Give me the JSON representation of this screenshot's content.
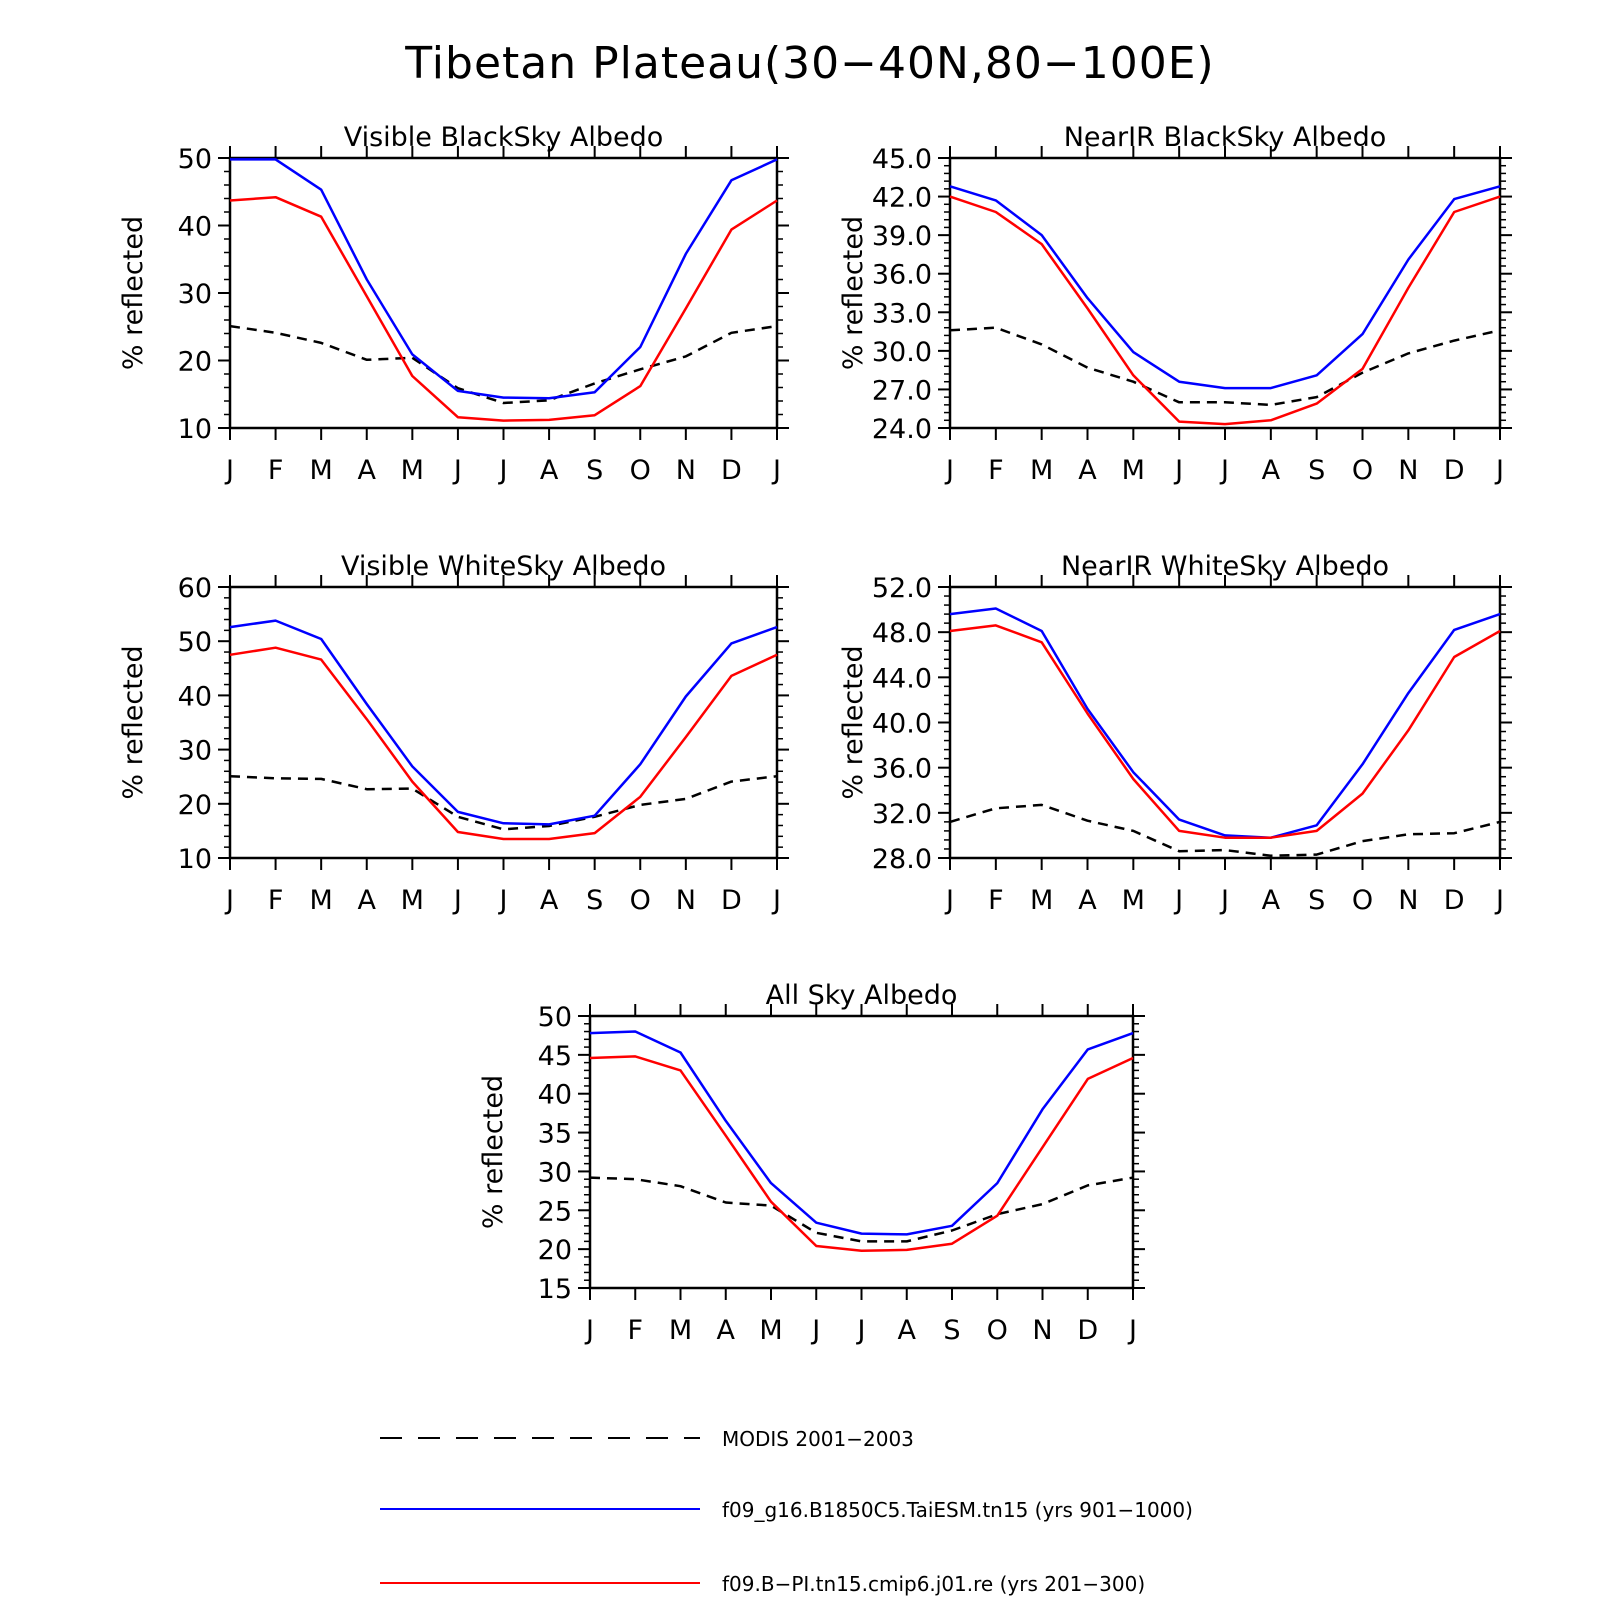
{
  "figure": {
    "title": "Tibetan Plateau(30−40N,80−100E)",
    "legend": [
      {
        "label": "MODIS 2001−2003",
        "color": "#000000",
        "style": "dashed"
      },
      {
        "label": "f09_g16.B1850C5.TaiESM.tn15 (yrs 901−1000)",
        "color": "#0000ff",
        "style": "solid"
      },
      {
        "label": "f09.B−PI.tn15.cmip6.j01.re (yrs 201−300)",
        "color": "#ff0000",
        "style": "solid"
      }
    ]
  },
  "chart_data": [
    {
      "type": "line",
      "title": "Visible BlackSky Albedo",
      "ylabel": "% reflected",
      "categories": [
        "J",
        "F",
        "M",
        "A",
        "M",
        "J",
        "J",
        "A",
        "S",
        "O",
        "N",
        "D",
        "J"
      ],
      "ylim": [
        10,
        50
      ],
      "yticks": [
        "10",
        "20",
        "30",
        "40",
        "50"
      ],
      "yminor": 2,
      "series": [
        {
          "name": "MODIS 2001−2003",
          "color": "#000000",
          "dashed": true,
          "values": [
            25.1,
            24.1,
            22.6,
            20.1,
            20.4,
            15.9,
            13.7,
            14.1,
            16.6,
            18.7,
            20.6,
            24.1,
            25.1
          ]
        },
        {
          "name": "f09_g16.B1850C5.TaiESM.tn15 (yrs 901−1000)",
          "color": "#0000ff",
          "dashed": false,
          "values": [
            49.8,
            49.8,
            45.3,
            32.0,
            20.9,
            15.5,
            14.5,
            14.4,
            15.3,
            22.0,
            35.8,
            46.7,
            49.8
          ]
        },
        {
          "name": "f09.B−PI.tn15.cmip6.j01.re (yrs 201−300)",
          "color": "#ff0000",
          "dashed": false,
          "values": [
            43.7,
            44.2,
            41.3,
            29.5,
            17.7,
            11.6,
            11.1,
            11.2,
            11.9,
            16.2,
            27.7,
            39.4,
            43.7
          ]
        }
      ]
    },
    {
      "type": "line",
      "title": "NearIR BlackSky Albedo",
      "ylabel": "% reflected",
      "categories": [
        "J",
        "F",
        "M",
        "A",
        "M",
        "J",
        "J",
        "A",
        "S",
        "O",
        "N",
        "D",
        "J"
      ],
      "ylim": [
        24,
        45
      ],
      "yticks": [
        "24.0",
        "27.0",
        "30.0",
        "33.0",
        "36.0",
        "39.0",
        "42.0",
        "45.0"
      ],
      "yminor": 2,
      "series": [
        {
          "name": "MODIS 2001−2003",
          "color": "#000000",
          "dashed": true,
          "values": [
            31.6,
            31.8,
            30.5,
            28.7,
            27.6,
            26.0,
            26.0,
            25.8,
            26.4,
            28.3,
            29.8,
            30.8,
            31.6
          ]
        },
        {
          "name": "f09_g16.B1850C5.TaiESM.tn15 (yrs 901−1000)",
          "color": "#0000ff",
          "dashed": false,
          "values": [
            42.8,
            41.7,
            39.0,
            34.1,
            29.9,
            27.6,
            27.1,
            27.1,
            28.1,
            31.3,
            37.1,
            41.8,
            42.8
          ]
        },
        {
          "name": "f09.B−PI.tn15.cmip6.j01.re (yrs 201−300)",
          "color": "#ff0000",
          "dashed": false,
          "values": [
            42.0,
            40.8,
            38.3,
            33.3,
            28.1,
            24.5,
            24.3,
            24.6,
            25.9,
            28.6,
            34.9,
            40.8,
            42.0
          ]
        }
      ]
    },
    {
      "type": "line",
      "title": "Visible WhiteSky Albedo",
      "ylabel": "% reflected",
      "categories": [
        "J",
        "F",
        "M",
        "A",
        "M",
        "J",
        "J",
        "A",
        "S",
        "O",
        "N",
        "D",
        "J"
      ],
      "ylim": [
        10,
        60
      ],
      "yticks": [
        "10",
        "20",
        "30",
        "40",
        "50",
        "60"
      ],
      "yminor": 2,
      "series": [
        {
          "name": "MODIS 2001−2003",
          "color": "#000000",
          "dashed": true,
          "values": [
            25.1,
            24.7,
            24.6,
            22.7,
            22.8,
            17.6,
            15.3,
            15.9,
            17.6,
            19.8,
            20.9,
            24.1,
            25.1
          ]
        },
        {
          "name": "f09_g16.B1850C5.TaiESM.tn15 (yrs 901−1000)",
          "color": "#0000ff",
          "dashed": false,
          "values": [
            52.6,
            53.8,
            50.4,
            38.4,
            26.9,
            18.5,
            16.4,
            16.2,
            17.8,
            27.3,
            39.8,
            49.6,
            52.6
          ]
        },
        {
          "name": "f09.B−PI.tn15.cmip6.j01.re (yrs 201−300)",
          "color": "#ff0000",
          "dashed": false,
          "values": [
            47.5,
            48.8,
            46.6,
            35.6,
            24.1,
            14.8,
            13.5,
            13.5,
            14.6,
            21.3,
            32.3,
            43.6,
            47.5
          ]
        }
      ]
    },
    {
      "type": "line",
      "title": "NearIR WhiteSky Albedo",
      "ylabel": "% reflected",
      "categories": [
        "J",
        "F",
        "M",
        "A",
        "M",
        "J",
        "J",
        "A",
        "S",
        "O",
        "N",
        "D",
        "J"
      ],
      "ylim": [
        28,
        52
      ],
      "yticks": [
        "28.0",
        "32.0",
        "36.0",
        "40.0",
        "44.0",
        "48.0",
        "52.0"
      ],
      "yminor": 2,
      "series": [
        {
          "name": "MODIS 2001−2003",
          "color": "#000000",
          "dashed": true,
          "values": [
            31.2,
            32.4,
            32.7,
            31.3,
            30.4,
            28.6,
            28.7,
            28.2,
            28.3,
            29.5,
            30.1,
            30.2,
            31.2
          ]
        },
        {
          "name": "f09_g16.B1850C5.TaiESM.tn15 (yrs 901−1000)",
          "color": "#0000ff",
          "dashed": false,
          "values": [
            49.6,
            50.1,
            48.1,
            41.2,
            35.6,
            31.4,
            30.0,
            29.8,
            30.9,
            36.3,
            42.6,
            48.2,
            49.6
          ]
        },
        {
          "name": "f09.B−PI.tn15.cmip6.j01.re (yrs 201−300)",
          "color": "#ff0000",
          "dashed": false,
          "values": [
            48.1,
            48.6,
            47.1,
            40.8,
            35.0,
            30.4,
            29.8,
            29.8,
            30.4,
            33.7,
            39.3,
            45.8,
            48.1
          ]
        }
      ]
    },
    {
      "type": "line",
      "title": "All Sky Albedo",
      "ylabel": "% reflected",
      "categories": [
        "J",
        "F",
        "M",
        "A",
        "M",
        "J",
        "J",
        "A",
        "S",
        "O",
        "N",
        "D",
        "J"
      ],
      "ylim": [
        15,
        50
      ],
      "yticks": [
        "15",
        "20",
        "25",
        "30",
        "35",
        "40",
        "45",
        "50"
      ],
      "yminor": 2,
      "series": [
        {
          "name": "MODIS 2001−2003",
          "color": "#000000",
          "dashed": true,
          "values": [
            29.2,
            29.0,
            28.1,
            26.0,
            25.6,
            22.1,
            21.0,
            21.0,
            22.4,
            24.5,
            25.8,
            28.2,
            29.2
          ]
        },
        {
          "name": "f09_g16.B1850C5.TaiESM.tn15 (yrs 901−1000)",
          "color": "#0000ff",
          "dashed": false,
          "values": [
            47.8,
            48.0,
            45.3,
            36.5,
            28.5,
            23.4,
            22.0,
            21.9,
            23.0,
            28.5,
            38.0,
            45.7,
            47.8
          ]
        },
        {
          "name": "f09.B−PI.tn15.cmip6.j01.re (yrs 201−300)",
          "color": "#ff0000",
          "dashed": false,
          "values": [
            44.6,
            44.8,
            43.0,
            34.6,
            26.1,
            20.4,
            19.8,
            19.9,
            20.7,
            24.3,
            33.1,
            41.9,
            44.6
          ]
        }
      ]
    }
  ]
}
